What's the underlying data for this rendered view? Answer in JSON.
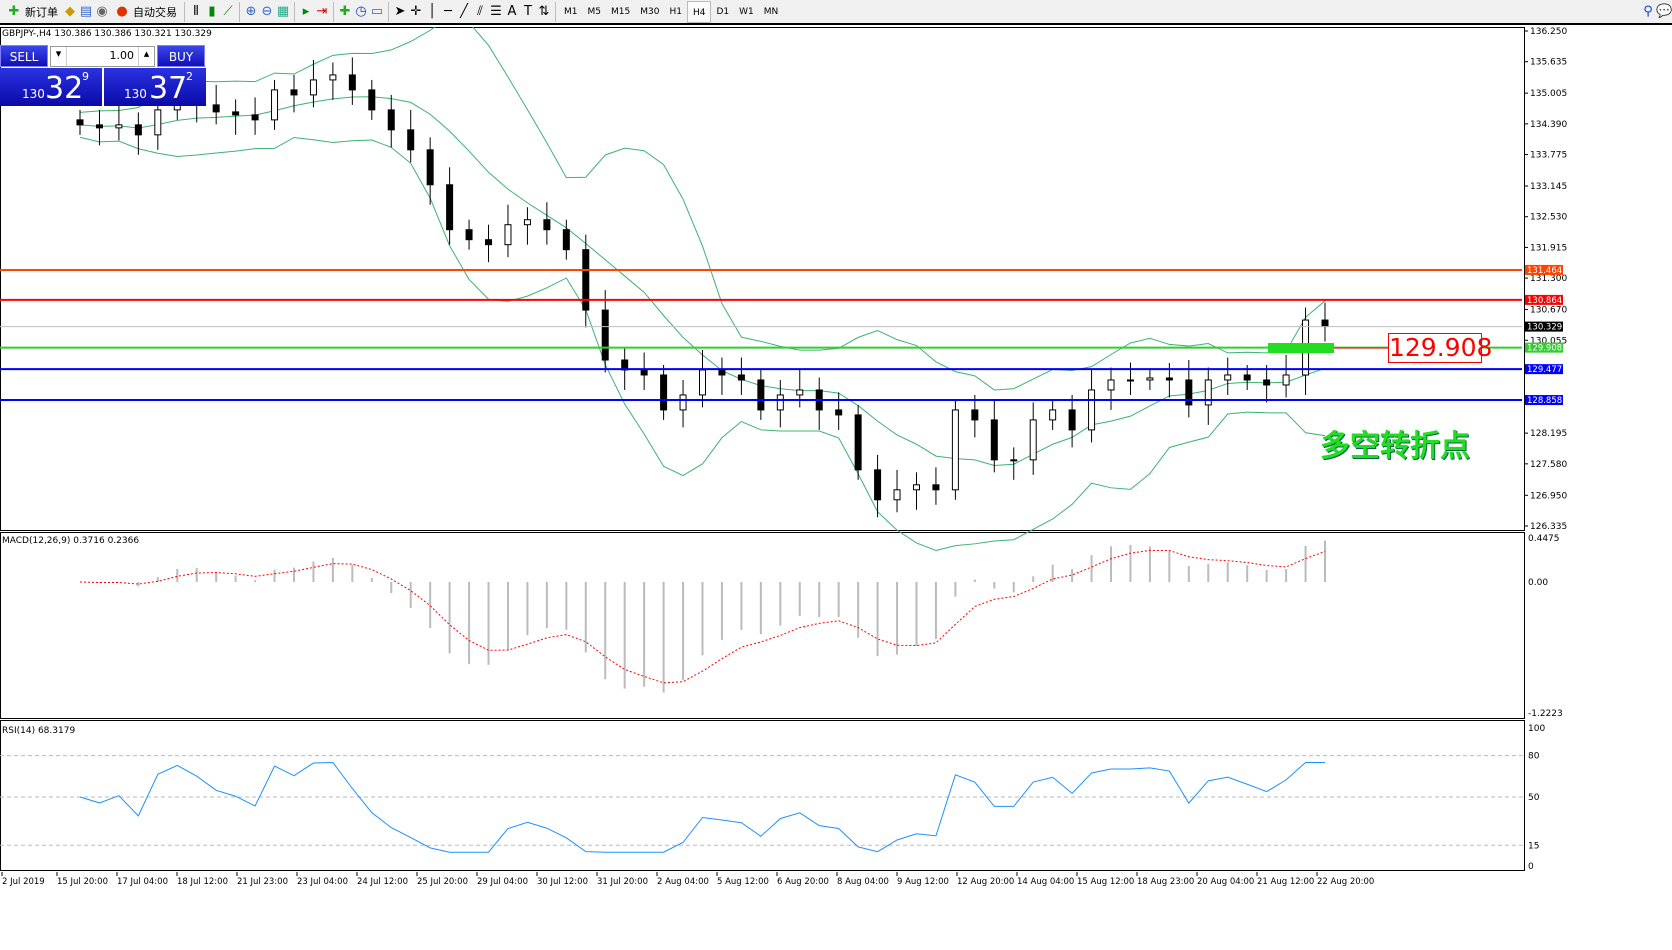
{
  "toolbar": {
    "new_order": "新订单",
    "auto_trading": "自动交易",
    "timeframes": [
      "M1",
      "M5",
      "M15",
      "M30",
      "H1",
      "H4",
      "D1",
      "W1",
      "MN"
    ],
    "active_timeframe": "H4"
  },
  "symbol_info": "GBPJPY-,H4  130.386 130.386 130.321 130.329",
  "trade_panel": {
    "sell_label": "SELL",
    "buy_label": "BUY",
    "lot": "1.00",
    "sell_prefix": "130",
    "sell_big": "32",
    "sell_sup": "9",
    "buy_prefix": "130",
    "buy_big": "37",
    "buy_sup": "2"
  },
  "price_axis": [
    "136.250",
    "135.635",
    "135.005",
    "134.390",
    "133.775",
    "133.145",
    "132.530",
    "131.915",
    "131.300",
    "130.670",
    "130.055",
    "128.195",
    "127.580",
    "126.950",
    "126.335"
  ],
  "levels": [
    {
      "price": 131.464,
      "label": "131.464",
      "color": "#ff4500"
    },
    {
      "price": 130.864,
      "label": "130.864",
      "color": "#ff0000"
    },
    {
      "price": 130.329,
      "label": "130.329",
      "color": "#000000",
      "line": "#c0c0c0"
    },
    {
      "price": 129.908,
      "label": "129.908",
      "color": "#33cc33"
    },
    {
      "price": 129.477,
      "label": "129.477",
      "color": "#0000ff"
    },
    {
      "price": 128.858,
      "label": "128.858",
      "color": "#0000ff"
    }
  ],
  "annotation_price": "129.908",
  "annotation_text": "多空转折点",
  "macd": {
    "label": "MACD(12,26,9) 0.3716 0.2366",
    "axis": [
      "0.4475",
      "0.00",
      "-1.2223"
    ]
  },
  "rsi": {
    "label": "RSI(14) 68.3179",
    "axis": [
      "100",
      "80",
      "50",
      "15",
      "0"
    ]
  },
  "time_axis": [
    "2 Jul 2019",
    "15 Jul 20:00",
    "17 Jul 04:00",
    "18 Jul 12:00",
    "21 Jul 23:00",
    "23 Jul 04:00",
    "24 Jul 12:00",
    "25 Jul 20:00",
    "29 Jul 04:00",
    "30 Jul 12:00",
    "31 Jul 20:00",
    "2 Aug 04:00",
    "5 Aug 12:00",
    "6 Aug 20:00",
    "8 Aug 04:00",
    "9 Aug 12:00",
    "12 Aug 20:00",
    "14 Aug 04:00",
    "15 Aug 12:00",
    "18 Aug 23:00",
    "20 Aug 04:00",
    "21 Aug 12:00",
    "22 Aug 20:00"
  ],
  "chart_data": {
    "type": "candlestick",
    "symbol": "GBPJPY",
    "timeframe": "H4",
    "ylim": [
      126.335,
      136.25
    ],
    "closes": [
      134.37,
      134.31,
      134.37,
      134.17,
      134.67,
      134.87,
      134.77,
      134.63,
      134.57,
      134.47,
      135.07,
      134.97,
      135.27,
      135.37,
      135.07,
      134.67,
      134.27,
      133.87,
      133.17,
      132.27,
      132.07,
      131.97,
      132.37,
      132.47,
      132.27,
      131.87,
      130.66,
      129.66,
      129.46,
      129.36,
      128.66,
      128.96,
      129.46,
      129.36,
      129.26,
      128.66,
      128.96,
      129.06,
      128.66,
      128.56,
      127.46,
      126.86,
      127.06,
      127.16,
      127.06,
      128.66,
      128.46,
      127.66,
      127.66,
      128.46,
      128.66,
      128.26,
      129.06,
      129.26,
      129.26,
      129.3,
      129.26,
      128.76,
      129.26,
      129.36,
      129.26,
      129.16,
      129.36,
      130.46,
      130.33
    ]
  }
}
